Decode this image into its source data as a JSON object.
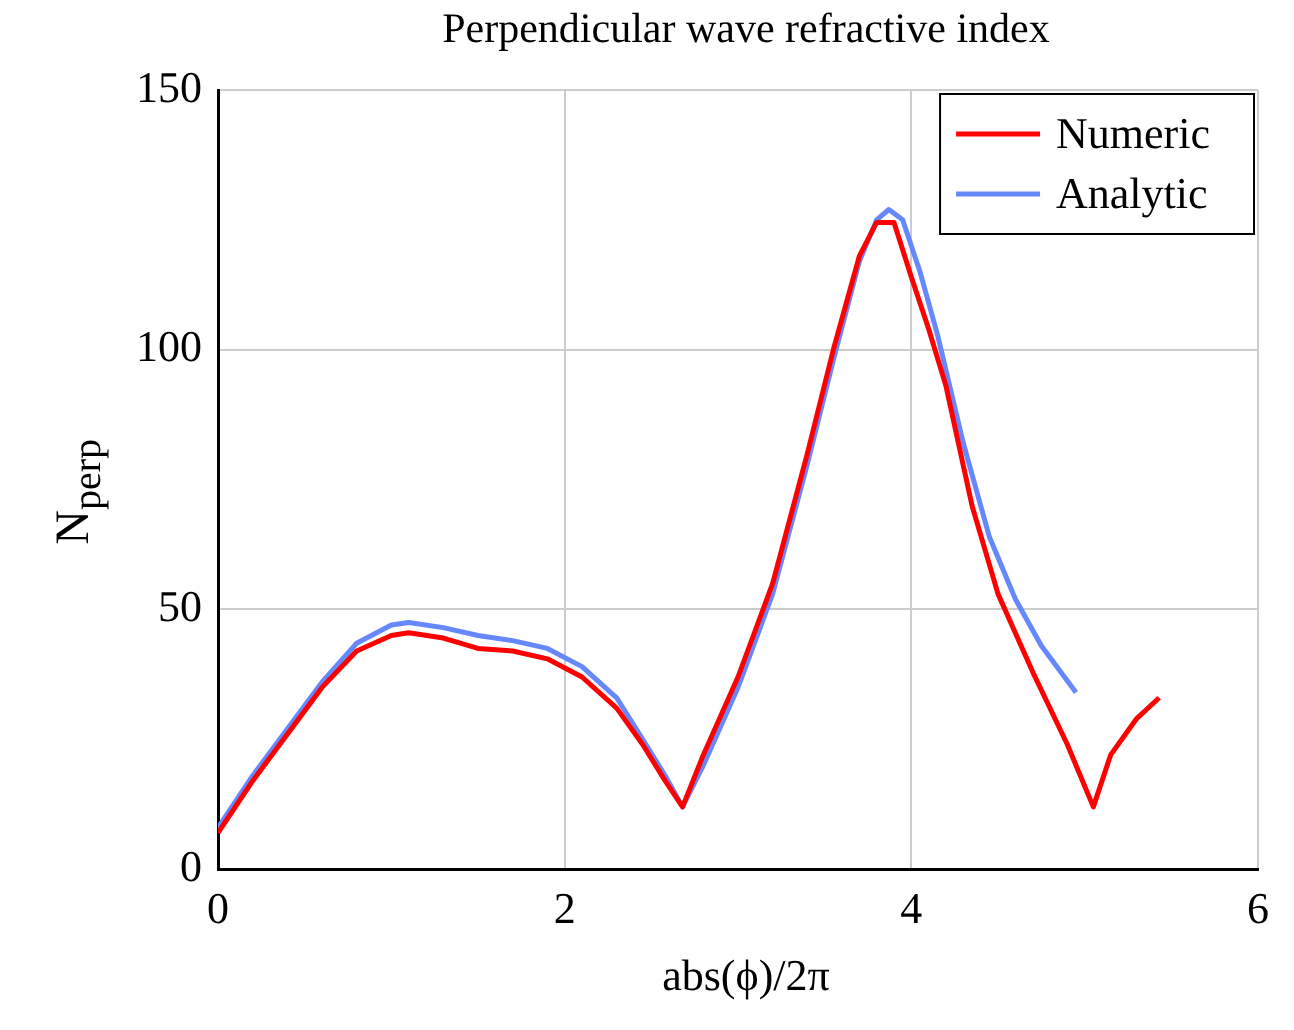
{
  "chart_data": {
    "type": "line",
    "title": "Perpendicular wave refractive index",
    "xlabel": "abs(ϕ)/2π",
    "ylabel": "N$_{perp}$",
    "xlim": [
      0,
      6
    ],
    "ylim": [
      0,
      150
    ],
    "xticks": [
      0,
      2,
      4,
      6
    ],
    "yticks": [
      0,
      50,
      100,
      150
    ],
    "grid": true,
    "legend": "top right",
    "line_style": "solid",
    "marker": "none",
    "series": [
      {
        "name": "Numeric",
        "color": "#ff0000",
        "x": [
          0,
          0.2,
          0.4,
          0.6,
          0.8,
          1.0,
          1.1,
          1.3,
          1.5,
          1.7,
          1.9,
          2.1,
          2.3,
          2.45,
          2.58,
          2.68,
          2.8,
          3.0,
          3.2,
          3.4,
          3.55,
          3.7,
          3.8,
          3.9,
          4.0,
          4.1,
          4.2,
          4.35,
          4.5,
          4.7,
          4.9,
          5.05,
          5.15,
          5.3,
          5.43
        ],
        "values": [
          7,
          17,
          26,
          35,
          42,
          45,
          45.5,
          44.5,
          42.5,
          42,
          40.5,
          37,
          31,
          24,
          17,
          12,
          22,
          37,
          55,
          80,
          100,
          118,
          124.5,
          124.5,
          114,
          104,
          93,
          70,
          53,
          38,
          24,
          12,
          22,
          29,
          33
        ]
      },
      {
        "name": "Analytic",
        "color": "#6688ff",
        "x": [
          0,
          0.2,
          0.4,
          0.6,
          0.8,
          1.0,
          1.1,
          1.3,
          1.5,
          1.7,
          1.9,
          2.1,
          2.3,
          2.45,
          2.58,
          2.68,
          2.8,
          3.0,
          3.2,
          3.4,
          3.55,
          3.7,
          3.8,
          3.87,
          3.95,
          4.05,
          4.15,
          4.3,
          4.45,
          4.6,
          4.75,
          4.95
        ],
        "values": [
          8,
          18,
          27,
          36,
          43.5,
          47,
          47.5,
          46.5,
          45,
          44,
          42.5,
          39,
          33,
          25,
          18,
          12,
          20,
          35,
          53,
          78,
          98,
          117,
          125,
          127,
          125,
          115,
          103,
          82,
          64,
          52,
          43,
          34
        ]
      }
    ]
  }
}
